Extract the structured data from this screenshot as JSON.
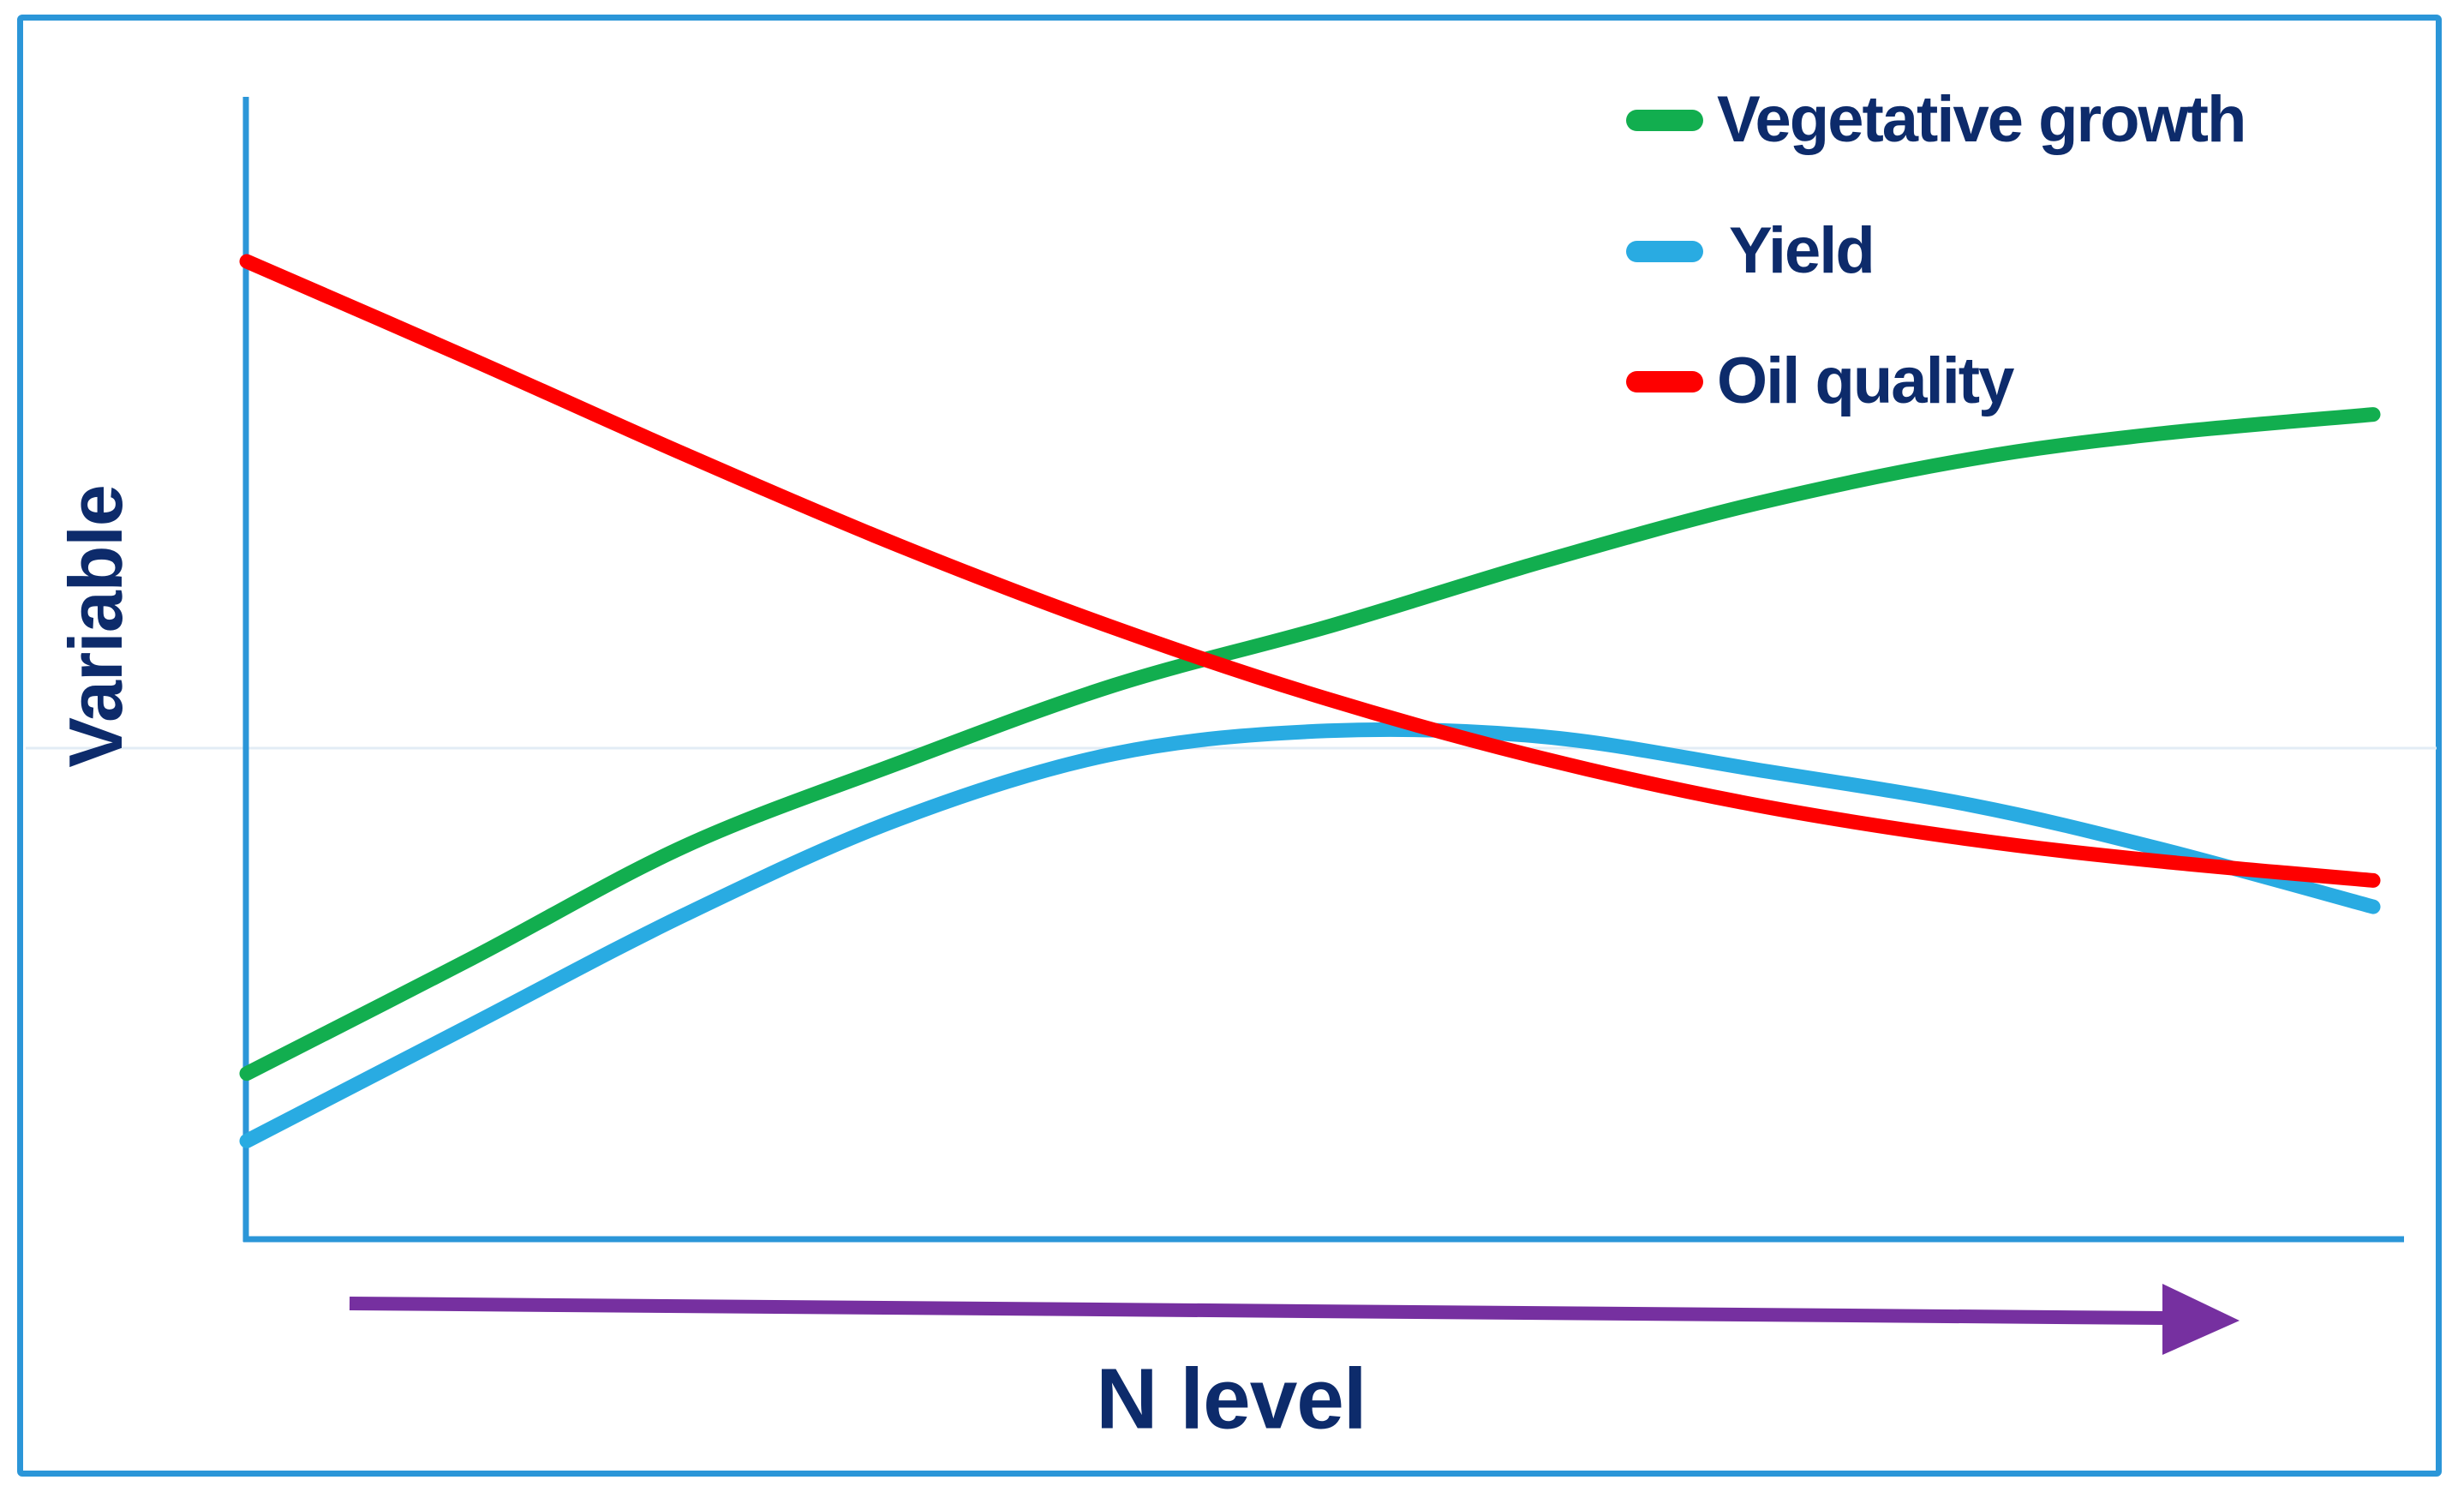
{
  "figure": {
    "y_axis_label": "Variable",
    "x_axis_label": "N level"
  },
  "legend": {
    "position": "top-right",
    "items": [
      {
        "name": "vegetative-growth",
        "label": "Vegetative growth",
        "color": "#12AE4F"
      },
      {
        "name": "yield",
        "label": "Yield",
        "color": "#29ABE2"
      },
      {
        "name": "oil-quality",
        "label": "Oil quality",
        "color": "#FE0000"
      }
    ]
  },
  "colors": {
    "axis": "#2B96D8",
    "frame": "#2B96D8",
    "text": "#0D2B6B",
    "x_arrow": "#7630A0",
    "gridline": "#E2ECF5"
  },
  "chart_data": {
    "type": "line",
    "title": "",
    "xlabel": "N level",
    "ylabel": "Variable",
    "x_axis_style": "conceptual arrow, no ticks, increasing N level",
    "y_axis_style": "no ticks, relative variable scale",
    "xlim": [
      0,
      100
    ],
    "ylim": [
      0,
      100
    ],
    "grid": false,
    "legend_position": "top-right",
    "series": [
      {
        "name": "Vegetative growth",
        "color": "#12AE4F",
        "shape": "monotonic increase, flattening at high N",
        "points": [
          [
            0,
            14.5
          ],
          [
            10.6,
            24.6
          ],
          [
            20.6,
            34.4
          ],
          [
            30.7,
            41.7
          ],
          [
            40.8,
            48.5
          ],
          [
            50.8,
            53.6
          ],
          [
            60.9,
            59.3
          ],
          [
            71.0,
            64.4
          ],
          [
            81.1,
            68.3
          ],
          [
            89.9,
            70.5
          ],
          [
            100,
            72.2
          ]
        ]
      },
      {
        "name": "Yield",
        "color": "#29ABE2",
        "shape": "rises to optimum at mid N, then declines",
        "points": [
          [
            0,
            8.6
          ],
          [
            10.6,
            18.8
          ],
          [
            20.6,
            28.4
          ],
          [
            30.7,
            36.8
          ],
          [
            40.8,
            42.5
          ],
          [
            50.8,
            44.5
          ],
          [
            60.9,
            44.0
          ],
          [
            71.0,
            41.1
          ],
          [
            81.1,
            38.0
          ],
          [
            89.9,
            34.2
          ],
          [
            100,
            29.1
          ]
        ]
      },
      {
        "name": "Oil quality",
        "color": "#FE0000",
        "shape": "steep decline at low N, flattening at high N",
        "points": [
          [
            0,
            85.6
          ],
          [
            10.6,
            77.0
          ],
          [
            20.6,
            68.7
          ],
          [
            30.7,
            60.7
          ],
          [
            40.8,
            53.5
          ],
          [
            50.8,
            47.3
          ],
          [
            60.9,
            42.1
          ],
          [
            71.0,
            38.0
          ],
          [
            81.1,
            35.0
          ],
          [
            89.9,
            33.1
          ],
          [
            100,
            31.4
          ]
        ]
      }
    ],
    "annotations": [
      "red crosses green near mid N level",
      "red crosses cyan near yield optimum",
      "cyan falls below red again at far right"
    ]
  }
}
